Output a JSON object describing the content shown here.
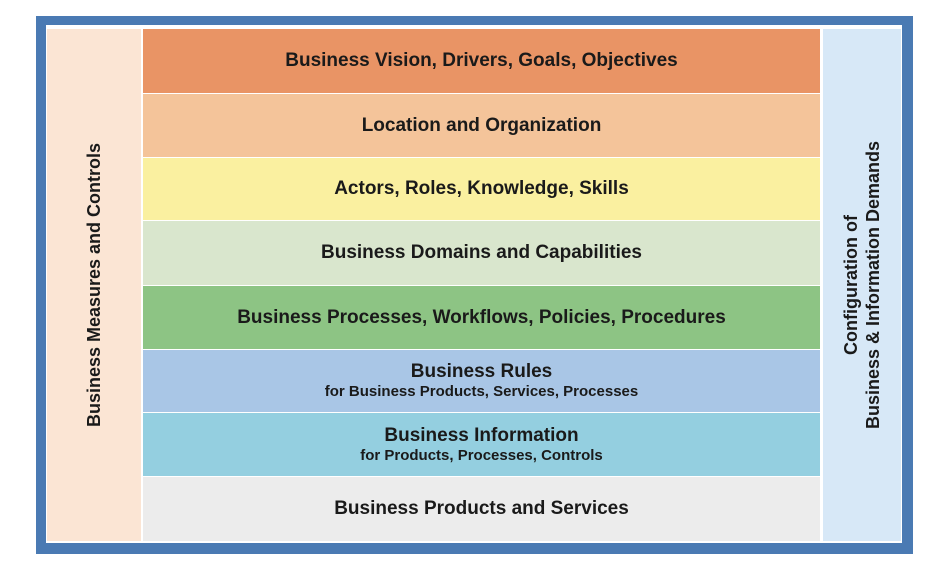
{
  "diagram": {
    "colors": {
      "frame": "#4a7ab3",
      "left_panel": "#fbe5d4",
      "right_panel": "#d7e8f7"
    },
    "left_panel": {
      "label": "Business Measures and Controls"
    },
    "right_panel": {
      "label_line1": "Configuration of",
      "label_line2": "Business & Information Demands"
    },
    "layers": [
      {
        "title": "Business Vision, Drivers, Goals, Objectives",
        "subtitle": "",
        "color": "#e99465"
      },
      {
        "title": "Location and Organization",
        "subtitle": "",
        "color": "#f4c49a"
      },
      {
        "title": "Actors, Roles, Knowledge, Skills",
        "subtitle": "",
        "color": "#faf0a0"
      },
      {
        "title": "Business Domains and Capabilities",
        "subtitle": "",
        "color": "#d9e6cd"
      },
      {
        "title": "Business Processes, Workflows, Policies, Procedures",
        "subtitle": "",
        "color": "#8dc484"
      },
      {
        "title": "Business Rules",
        "subtitle": "for Business Products, Services, Processes",
        "color": "#a9c6e6"
      },
      {
        "title": "Business Information",
        "subtitle": "for Products, Processes, Controls",
        "color": "#94cfe0"
      },
      {
        "title": "Business Products and Services",
        "subtitle": "",
        "color": "#ececec"
      }
    ]
  }
}
